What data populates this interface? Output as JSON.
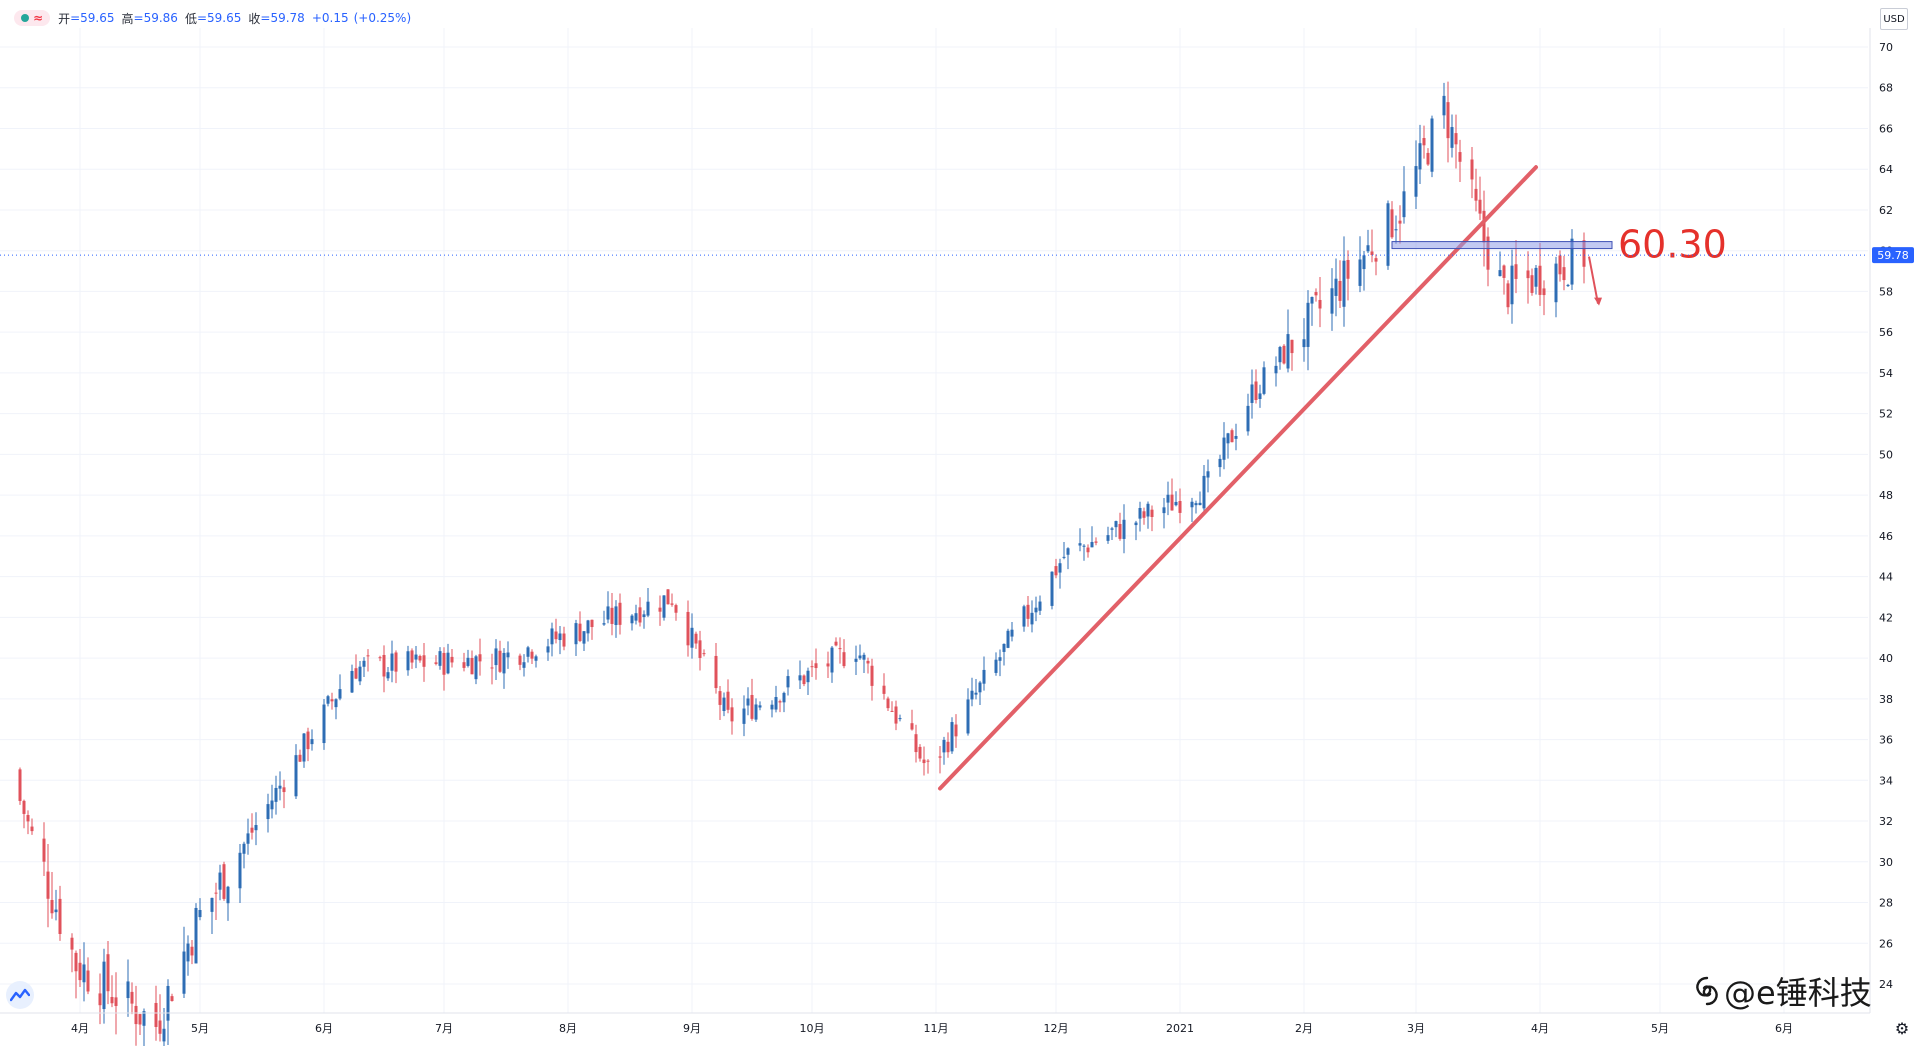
{
  "legend": {
    "open_label": "开",
    "open": "=59.65",
    "high_label": "高",
    "high": "=59.86",
    "low_label": "低",
    "low": "=59.65",
    "close_label": "收",
    "close": "=59.78",
    "change": "+0.15",
    "change_pct": "(+0.25%)"
  },
  "currency": "USD",
  "watermark": "@e锤科技",
  "colors": {
    "up": "#2e6db4",
    "down": "#e0525b",
    "trendline": "#e26068",
    "zone": "#8f9ce8",
    "annotation": "#e5312b"
  },
  "chart_data": {
    "type": "candlestick",
    "x_ticks": [
      "4月",
      "5月",
      "6月",
      "7月",
      "8月",
      "9月",
      "10月",
      "11月",
      "12月",
      "2021",
      "2月",
      "3月",
      "4月",
      "5月",
      "6月"
    ],
    "y_ticks": [
      24,
      26,
      28,
      30,
      32,
      34,
      36,
      38,
      40,
      42,
      44,
      46,
      48,
      50,
      52,
      54,
      56,
      58,
      60,
      62,
      64,
      66,
      68,
      70
    ],
    "y_range": [
      22.5,
      72
    ],
    "last_price": 59.78,
    "last_price_label": "59.78",
    "ohlc_key_points": [
      {
        "date": "2020-03-17",
        "close": 33
      },
      {
        "date": "2020-03-31",
        "close": 25
      },
      {
        "date": "2020-04-20",
        "close": 22
      },
      {
        "date": "2020-04-30",
        "close": 27
      },
      {
        "date": "2020-06-08",
        "close": 39.5
      },
      {
        "date": "2020-07-15",
        "close": 40
      },
      {
        "date": "2020-08-27",
        "close": 43
      },
      {
        "date": "2020-09-10",
        "close": 37
      },
      {
        "date": "2020-10-12",
        "close": 40.5
      },
      {
        "date": "2020-10-30",
        "close": 34.5
      },
      {
        "date": "2020-12-03",
        "close": 45
      },
      {
        "date": "2021-01-08",
        "close": 48.5
      },
      {
        "date": "2021-01-19",
        "close": 53
      },
      {
        "date": "2021-02-25",
        "close": 62
      },
      {
        "date": "2021-03-08",
        "close": 67
      },
      {
        "date": "2021-03-18",
        "close": 60.5
      },
      {
        "date": "2021-03-23",
        "close": 58
      },
      {
        "date": "2021-04-12",
        "close": 59.78
      }
    ],
    "annotations": {
      "trendline": {
        "from": {
          "date": "2020-11-02",
          "price": 33.6
        },
        "to": {
          "date": "2021-03-31",
          "price": 64.1
        }
      },
      "zone_price": 60.3,
      "label": "60.30"
    }
  }
}
